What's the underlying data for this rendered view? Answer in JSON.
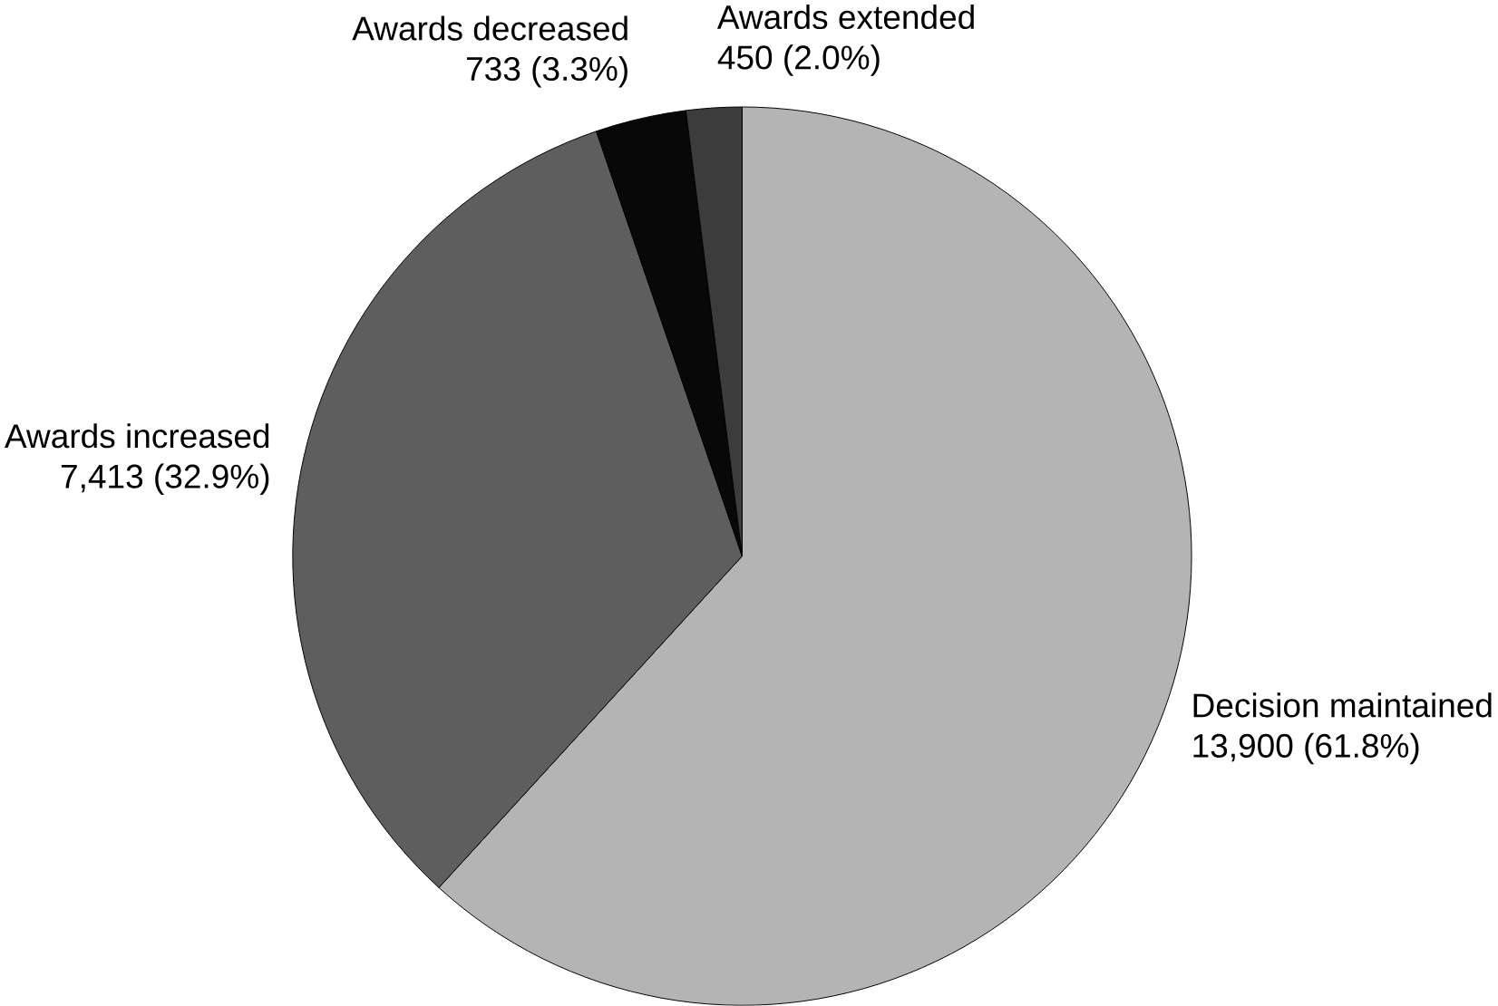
{
  "chart_data": {
    "type": "pie",
    "categories": [
      "Decision maintained",
      "Awards increased",
      "Awards decreased",
      "Awards extended"
    ],
    "values": [
      13900,
      7413,
      733,
      450
    ],
    "colors": [
      "#b4b4b4",
      "#5e5e5e",
      "#080808",
      "#3c3c3c"
    ],
    "value_labels": [
      "13,900 (61.8%)",
      "7,413 (32.9%)",
      "733 (3.3%)",
      "450 (2.0%)"
    ]
  }
}
